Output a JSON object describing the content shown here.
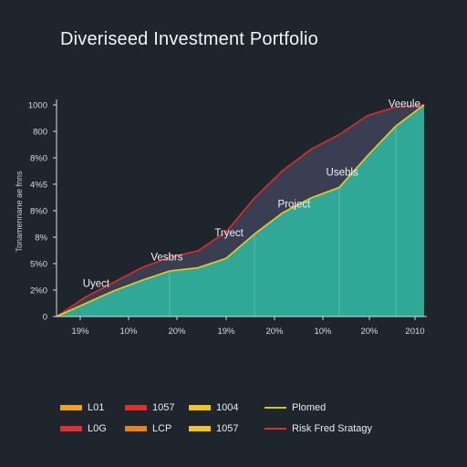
{
  "chart_data": {
    "type": "area",
    "title": "Diveriseed Investment Portfolio",
    "ylabel": "Tonamennane ae fnns",
    "ylim": [
      0,
      1000
    ],
    "y_tick_labels": [
      "0",
      "2%0",
      "5%0",
      "8%",
      "8%0",
      "4%5",
      "8%0",
      "800",
      "1000"
    ],
    "x_tick_labels": [
      "19%",
      "10%",
      "20%",
      "19%",
      "20%",
      "10%",
      "20%",
      "2010"
    ],
    "x": [
      0,
      1,
      2,
      3,
      4,
      5,
      6,
      7,
      8,
      9,
      10,
      11,
      12,
      13
    ],
    "series": [
      {
        "values": [
          0,
          60,
          120,
          170,
          215,
          230,
          275,
          390,
          490,
          560,
          610,
          760,
          900,
          1000
        ]
      },
      {
        "values": [
          0,
          90,
          160,
          230,
          280,
          310,
          400,
          560,
          690,
          790,
          860,
          950,
          990,
          1000
        ]
      }
    ],
    "annotations": [
      {
        "text": "Uyect",
        "x": 1.4,
        "y": 140
      },
      {
        "text": "Vesbrs",
        "x": 3.9,
        "y": 265
      },
      {
        "text": "Tryect",
        "x": 6.1,
        "y": 380
      },
      {
        "text": "Project",
        "x": 8.4,
        "y": 515
      },
      {
        "text": "Usebls",
        "x": 10.1,
        "y": 665
      },
      {
        "text": "Veeule",
        "x": 12.3,
        "y": 990
      }
    ],
    "grid": false,
    "legend_position": "bottom"
  },
  "legend": [
    {
      "label": "L01",
      "color": "#f3a31b",
      "kind": "bar"
    },
    {
      "label": "1057",
      "color": "#e42d2d",
      "kind": "bar"
    },
    {
      "label": "1004",
      "color": "#f4c51c",
      "kind": "bar"
    },
    {
      "label": "Plomed",
      "color": "#d8c21c",
      "kind": "line"
    },
    {
      "label": "L0G",
      "color": "#e42d2d",
      "kind": "bar"
    },
    {
      "label": "LCP",
      "color": "#ef7f19",
      "kind": "bar"
    },
    {
      "label": "1057",
      "color": "#f4c51c",
      "kind": "bar"
    },
    {
      "label": "Risk Fred Sratagy",
      "color": "#e42d2d",
      "kind": "line"
    }
  ],
  "colors": {
    "teal_fill": "#2fa898",
    "band_fill": "#3b3f55",
    "lower_line": "#e8c21e",
    "upper_line": "#df2a25",
    "axis": "#d9dde2"
  }
}
